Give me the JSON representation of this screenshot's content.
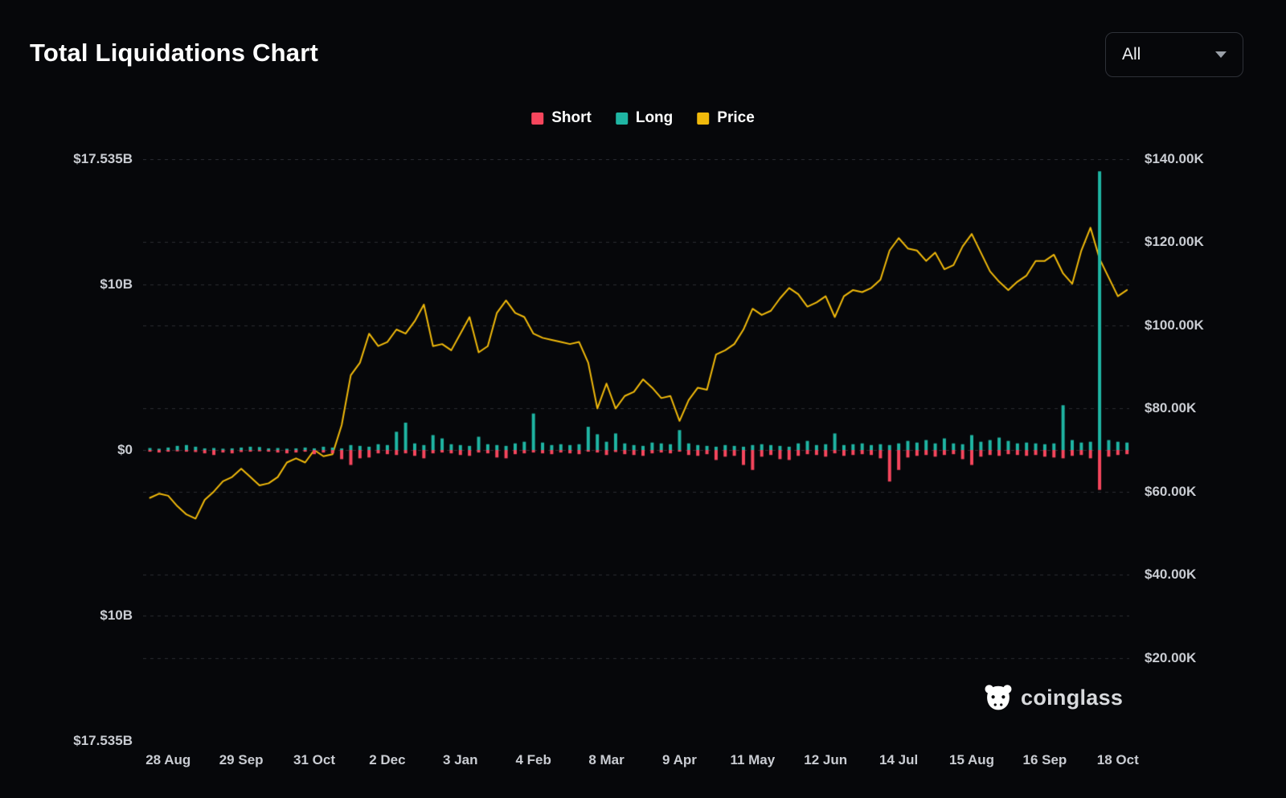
{
  "page": {
    "title": "Total Liquidations Chart",
    "background": "#06070a"
  },
  "controls": {
    "range_select": {
      "value": "All"
    }
  },
  "legend": [
    {
      "label": "Short",
      "color": "#f6465d"
    },
    {
      "label": "Long",
      "color": "#1fb5a3"
    },
    {
      "label": "Price",
      "color": "#f0b90b"
    }
  ],
  "watermark": {
    "text": "coinglass"
  },
  "chart_data": {
    "type": "bar+line",
    "title": "Total Liquidations Chart",
    "description": "Daily total crypto liquidations (Long above zero in teal, Short below zero in red) with BTC price line in yellow.",
    "grid": "dashed-horizontal",
    "legend_position": "top-center",
    "left_axis": {
      "labels": [
        "$17.535B",
        "$10B",
        "$0",
        "$10B",
        "$17.535B"
      ],
      "values_b": [
        17.535,
        10,
        0,
        -10,
        -17.535
      ],
      "max_b": 17.535
    },
    "right_axis": {
      "labels": [
        "$140.00K",
        "$120.00K",
        "$100.00K",
        "$80.00K",
        "$60.00K",
        "$40.00K",
        "$20.00K"
      ],
      "values_k": [
        140,
        120,
        100,
        80,
        60,
        40,
        20
      ],
      "max_k": 140,
      "min_k": 0
    },
    "x_axis": {
      "tick_labels": [
        "28 Aug",
        "29 Sep",
        "31 Oct",
        "2 Dec",
        "3 Jan",
        "4 Feb",
        "8 Mar",
        "9 Apr",
        "11 May",
        "12 Jun",
        "14 Jul",
        "15 Aug",
        "16 Sep",
        "18 Oct"
      ],
      "tick_days": [
        0,
        32,
        64,
        96,
        128,
        160,
        192,
        224,
        256,
        288,
        320,
        352,
        384,
        416
      ],
      "day_min": -11,
      "day_max": 421
    },
    "series": {
      "days_start": -8,
      "days_step": 4,
      "price_k": [
        58.5,
        59.5,
        59,
        56.5,
        54.5,
        53.5,
        58,
        60,
        62.5,
        63.5,
        65.5,
        63.5,
        61.5,
        62,
        63.5,
        67,
        68,
        67,
        70,
        68.5,
        69,
        76,
        88,
        91,
        98,
        95,
        96,
        99,
        98,
        101,
        105,
        95,
        95.5,
        94,
        98,
        102,
        93.5,
        95,
        103,
        106,
        103,
        102,
        98,
        97,
        96.5,
        96,
        95.5,
        96,
        91,
        80,
        86,
        80,
        83,
        84,
        87,
        85,
        82.5,
        83,
        77,
        82,
        85,
        84.5,
        93,
        94,
        95.5,
        99,
        104,
        102.5,
        103.5,
        106.5,
        109,
        107.5,
        104.5,
        105.5,
        107,
        102,
        107,
        108.5,
        108,
        109,
        111,
        118,
        121,
        118.5,
        118,
        115.5,
        117.5,
        113.5,
        114.5,
        119,
        122,
        117.5,
        113,
        110.5,
        108.5,
        110.5,
        112,
        115.5,
        115.5,
        117,
        112.5,
        110,
        118,
        123.5,
        116,
        111.5,
        107,
        108.5
      ],
      "long_liq_b": [
        0.12,
        0.08,
        0.15,
        0.25,
        0.3,
        0.2,
        0.1,
        0.12,
        0.08,
        0.1,
        0.15,
        0.2,
        0.18,
        0.1,
        0.12,
        0.08,
        0.1,
        0.15,
        0.1,
        0.2,
        0.15,
        0.1,
        0.3,
        0.25,
        0.2,
        0.35,
        0.3,
        1.1,
        1.65,
        0.4,
        0.3,
        0.9,
        0.7,
        0.35,
        0.3,
        0.25,
        0.8,
        0.35,
        0.3,
        0.25,
        0.4,
        0.5,
        2.2,
        0.45,
        0.3,
        0.35,
        0.3,
        0.35,
        1.4,
        0.95,
        0.5,
        1,
        0.4,
        0.3,
        0.25,
        0.45,
        0.4,
        0.35,
        1.2,
        0.4,
        0.3,
        0.25,
        0.2,
        0.3,
        0.25,
        0.2,
        0.3,
        0.35,
        0.3,
        0.25,
        0.2,
        0.4,
        0.55,
        0.3,
        0.35,
        1,
        0.3,
        0.35,
        0.4,
        0.3,
        0.35,
        0.3,
        0.4,
        0.55,
        0.45,
        0.6,
        0.4,
        0.7,
        0.4,
        0.35,
        0.9,
        0.5,
        0.6,
        0.75,
        0.55,
        0.4,
        0.45,
        0.4,
        0.35,
        0.4,
        2.7,
        0.6,
        0.45,
        0.5,
        16.8,
        0.6,
        0.5,
        0.45
      ],
      "short_liq_b": [
        0.1,
        0.15,
        0.1,
        0.08,
        0.1,
        0.12,
        0.2,
        0.3,
        0.15,
        0.2,
        0.12,
        0.1,
        0.08,
        0.1,
        0.15,
        0.2,
        0.15,
        0.1,
        0.25,
        0.15,
        0.2,
        0.55,
        0.9,
        0.5,
        0.45,
        0.2,
        0.25,
        0.3,
        0.2,
        0.35,
        0.5,
        0.2,
        0.15,
        0.2,
        0.3,
        0.35,
        0.15,
        0.2,
        0.45,
        0.5,
        0.25,
        0.2,
        0.15,
        0.2,
        0.25,
        0.15,
        0.2,
        0.25,
        0.1,
        0.15,
        0.3,
        0.12,
        0.25,
        0.3,
        0.35,
        0.2,
        0.15,
        0.2,
        0.1,
        0.3,
        0.35,
        0.25,
        0.6,
        0.4,
        0.35,
        0.9,
        1.2,
        0.4,
        0.3,
        0.55,
        0.6,
        0.35,
        0.25,
        0.3,
        0.4,
        0.2,
        0.35,
        0.3,
        0.25,
        0.3,
        0.5,
        1.9,
        1.2,
        0.45,
        0.35,
        0.3,
        0.4,
        0.3,
        0.25,
        0.55,
        0.9,
        0.4,
        0.3,
        0.35,
        0.25,
        0.3,
        0.35,
        0.3,
        0.4,
        0.45,
        0.5,
        0.35,
        0.3,
        0.5,
        2.4,
        0.4,
        0.3,
        0.25
      ]
    }
  }
}
